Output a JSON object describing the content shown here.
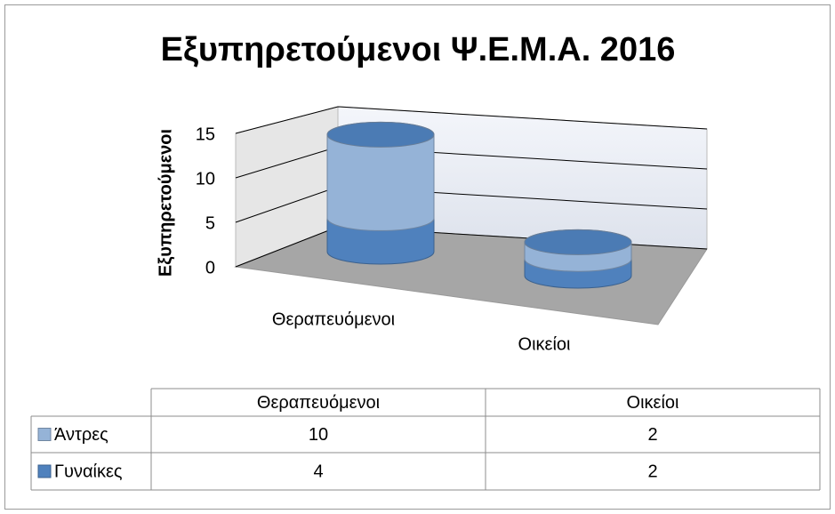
{
  "chart_data": {
    "type": "cylinder-stacked",
    "title": "Εξυπηρετούμενοι Ψ.Ε.Μ.Α. 2016",
    "y_label": "Εξυπηρετούμενοι",
    "categories": [
      "Θεραπευόμενοι",
      "Οικείοι"
    ],
    "series": [
      {
        "name": "Άντρες",
        "color": "#95b3d7",
        "values": [
          10,
          2
        ]
      },
      {
        "name": "Γυναίκες",
        "color": "#4f81bd",
        "values": [
          4,
          2
        ]
      }
    ],
    "ylim": [
      0,
      15
    ],
    "yticks": [
      0,
      5,
      10,
      15
    ],
    "grid": true,
    "data_table": true
  }
}
